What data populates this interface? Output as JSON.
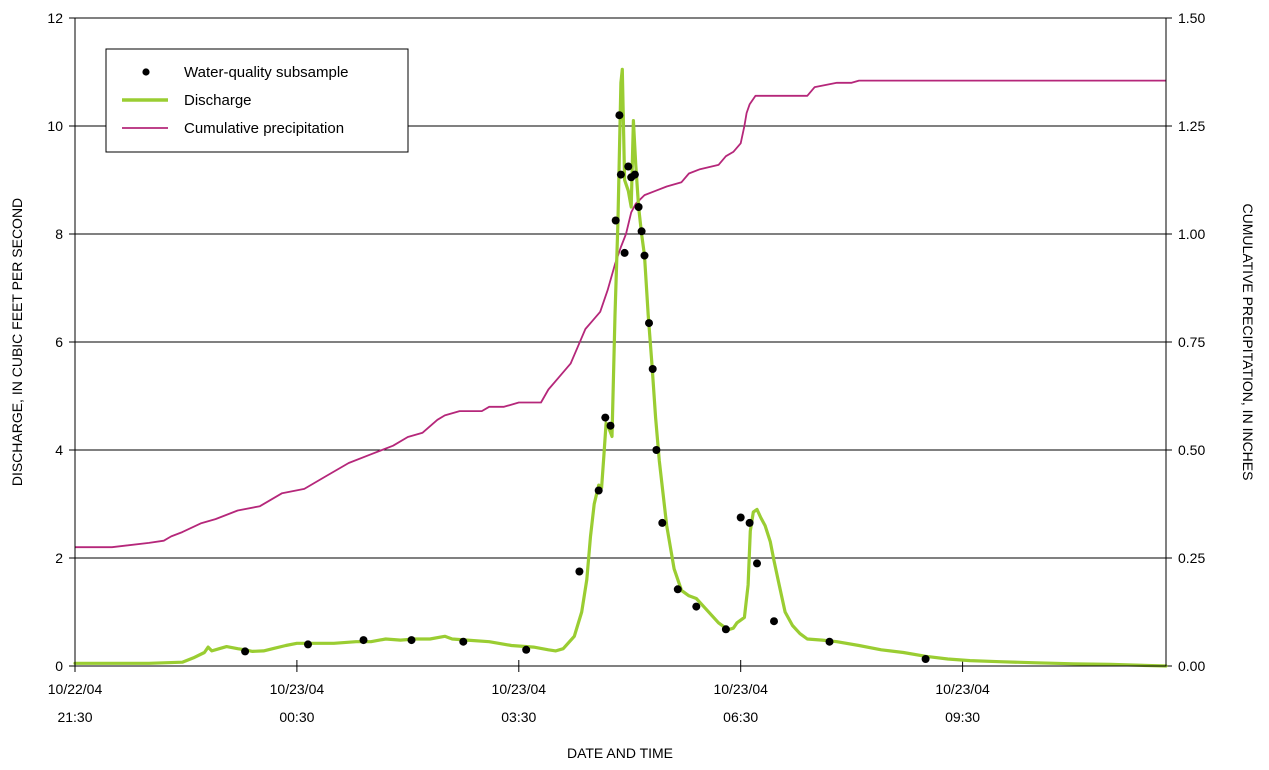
{
  "chart_data": {
    "type": "line",
    "xlabel": "DATE AND TIME",
    "ylabel_left": "DISCHARGE, IN CUBIC FEET PER SECOND",
    "ylabel_right": "CUMULATIVE PRECIPITATION, IN INCHES",
    "x_unit": "hours after 10/22/04 21:30",
    "xlim": [
      0,
      14.75
    ],
    "ylim_left": [
      0,
      12
    ],
    "ylim_right": [
      0,
      1.5
    ],
    "x_ticks": [
      {
        "x": 0,
        "date": "10/22/04",
        "time": "21:30"
      },
      {
        "x": 3,
        "date": "10/23/04",
        "time": "00:30"
      },
      {
        "x": 6,
        "date": "10/23/04",
        "time": "03:30"
      },
      {
        "x": 9,
        "date": "10/23/04",
        "time": "06:30"
      },
      {
        "x": 12,
        "date": "10/23/04",
        "time": "09:30"
      }
    ],
    "y_ticks_left": [
      "0",
      "2",
      "4",
      "6",
      "8",
      "10",
      "12"
    ],
    "y_ticks_right": [
      "0.00",
      "0.25",
      "0.50",
      "0.75",
      "1.00",
      "1.25",
      "1.50"
    ],
    "grid": "horizontal",
    "legend_position": "top-left",
    "series": [
      {
        "name": "Discharge",
        "axis": "left",
        "color": "#9acd32",
        "points": [
          [
            0,
            0.05
          ],
          [
            1,
            0.05
          ],
          [
            1.45,
            0.07
          ],
          [
            1.6,
            0.15
          ],
          [
            1.75,
            0.25
          ],
          [
            1.8,
            0.35
          ],
          [
            1.85,
            0.28
          ],
          [
            1.95,
            0.32
          ],
          [
            2.05,
            0.36
          ],
          [
            2.2,
            0.32
          ],
          [
            2.3,
            0.3
          ],
          [
            2.4,
            0.27
          ],
          [
            2.55,
            0.28
          ],
          [
            2.7,
            0.33
          ],
          [
            2.85,
            0.38
          ],
          [
            3.0,
            0.42
          ],
          [
            3.2,
            0.42
          ],
          [
            3.5,
            0.42
          ],
          [
            3.8,
            0.45
          ],
          [
            4.0,
            0.45
          ],
          [
            4.2,
            0.5
          ],
          [
            4.4,
            0.48
          ],
          [
            4.6,
            0.5
          ],
          [
            4.8,
            0.5
          ],
          [
            5.0,
            0.55
          ],
          [
            5.1,
            0.5
          ],
          [
            5.3,
            0.48
          ],
          [
            5.6,
            0.45
          ],
          [
            5.9,
            0.38
          ],
          [
            6.2,
            0.35
          ],
          [
            6.4,
            0.3
          ],
          [
            6.5,
            0.28
          ],
          [
            6.6,
            0.32
          ],
          [
            6.75,
            0.55
          ],
          [
            6.85,
            1.0
          ],
          [
            6.92,
            1.6
          ],
          [
            6.97,
            2.4
          ],
          [
            7.02,
            3.0
          ],
          [
            7.08,
            3.35
          ],
          [
            7.12,
            3.3
          ],
          [
            7.15,
            3.9
          ],
          [
            7.18,
            4.5
          ],
          [
            7.22,
            4.4
          ],
          [
            7.26,
            4.25
          ],
          [
            7.3,
            6.5
          ],
          [
            7.34,
            8.2
          ],
          [
            7.38,
            10.8
          ],
          [
            7.4,
            11.05
          ],
          [
            7.43,
            9.0
          ],
          [
            7.48,
            8.8
          ],
          [
            7.52,
            8.5
          ],
          [
            7.55,
            10.1
          ],
          [
            7.58,
            9.3
          ],
          [
            7.62,
            8.5
          ],
          [
            7.66,
            8.0
          ],
          [
            7.7,
            7.6
          ],
          [
            7.75,
            6.5
          ],
          [
            7.8,
            5.6
          ],
          [
            7.85,
            4.6
          ],
          [
            7.9,
            3.8
          ],
          [
            8.0,
            2.6
          ],
          [
            8.1,
            1.8
          ],
          [
            8.2,
            1.4
          ],
          [
            8.3,
            1.3
          ],
          [
            8.4,
            1.25
          ],
          [
            8.5,
            1.1
          ],
          [
            8.6,
            0.95
          ],
          [
            8.7,
            0.8
          ],
          [
            8.8,
            0.7
          ],
          [
            8.85,
            0.68
          ],
          [
            8.9,
            0.7
          ],
          [
            8.95,
            0.8
          ],
          [
            9.05,
            0.9
          ],
          [
            9.1,
            1.5
          ],
          [
            9.13,
            2.5
          ],
          [
            9.17,
            2.85
          ],
          [
            9.22,
            2.9
          ],
          [
            9.27,
            2.75
          ],
          [
            9.33,
            2.6
          ],
          [
            9.4,
            2.3
          ],
          [
            9.45,
            1.95
          ],
          [
            9.52,
            1.5
          ],
          [
            9.6,
            1.0
          ],
          [
            9.7,
            0.75
          ],
          [
            9.8,
            0.6
          ],
          [
            9.9,
            0.5
          ],
          [
            10.1,
            0.48
          ],
          [
            10.3,
            0.45
          ],
          [
            10.6,
            0.38
          ],
          [
            10.9,
            0.3
          ],
          [
            11.2,
            0.25
          ],
          [
            11.5,
            0.18
          ],
          [
            11.8,
            0.13
          ],
          [
            12.1,
            0.1
          ],
          [
            12.5,
            0.08
          ],
          [
            13.0,
            0.06
          ],
          [
            13.5,
            0.04
          ],
          [
            14.0,
            0.03
          ],
          [
            14.75,
            0.0
          ]
        ]
      },
      {
        "name": "Cumulative precipitation",
        "axis": "right",
        "color": "#b5277a",
        "points": [
          [
            0,
            0.275
          ],
          [
            0.5,
            0.275
          ],
          [
            1.0,
            0.285
          ],
          [
            1.2,
            0.29
          ],
          [
            1.3,
            0.3
          ],
          [
            1.45,
            0.31
          ],
          [
            1.7,
            0.33
          ],
          [
            1.9,
            0.34
          ],
          [
            2.2,
            0.36
          ],
          [
            2.5,
            0.37
          ],
          [
            2.8,
            0.4
          ],
          [
            3.1,
            0.41
          ],
          [
            3.4,
            0.44
          ],
          [
            3.7,
            0.47
          ],
          [
            4.0,
            0.49
          ],
          [
            4.3,
            0.51
          ],
          [
            4.5,
            0.53
          ],
          [
            4.7,
            0.54
          ],
          [
            4.9,
            0.57
          ],
          [
            5.0,
            0.58
          ],
          [
            5.2,
            0.59
          ],
          [
            5.5,
            0.59
          ],
          [
            5.6,
            0.6
          ],
          [
            5.8,
            0.6
          ],
          [
            6.0,
            0.61
          ],
          [
            6.3,
            0.61
          ],
          [
            6.4,
            0.64
          ],
          [
            6.55,
            0.67
          ],
          [
            6.7,
            0.7
          ],
          [
            6.8,
            0.74
          ],
          [
            6.9,
            0.78
          ],
          [
            7.0,
            0.8
          ],
          [
            7.1,
            0.82
          ],
          [
            7.2,
            0.87
          ],
          [
            7.3,
            0.93
          ],
          [
            7.38,
            0.97
          ],
          [
            7.45,
            1.0
          ],
          [
            7.52,
            1.05
          ],
          [
            7.58,
            1.07
          ],
          [
            7.7,
            1.09
          ],
          [
            7.85,
            1.1
          ],
          [
            8.0,
            1.11
          ],
          [
            8.2,
            1.12
          ],
          [
            8.3,
            1.14
          ],
          [
            8.45,
            1.15
          ],
          [
            8.7,
            1.16
          ],
          [
            8.8,
            1.18
          ],
          [
            8.9,
            1.19
          ],
          [
            9.0,
            1.21
          ],
          [
            9.05,
            1.25
          ],
          [
            9.08,
            1.28
          ],
          [
            9.12,
            1.3
          ],
          [
            9.2,
            1.32
          ],
          [
            9.5,
            1.32
          ],
          [
            9.9,
            1.32
          ],
          [
            10.0,
            1.34
          ],
          [
            10.3,
            1.35
          ],
          [
            10.5,
            1.35
          ],
          [
            10.6,
            1.355
          ],
          [
            14.75,
            1.355
          ]
        ]
      },
      {
        "name": "Water-quality subsample",
        "axis": "left",
        "type": "scatter",
        "color": "#000000",
        "points": [
          [
            2.3,
            0.27
          ],
          [
            3.15,
            0.4
          ],
          [
            3.9,
            0.48
          ],
          [
            4.55,
            0.48
          ],
          [
            5.25,
            0.45
          ],
          [
            6.1,
            0.3
          ],
          [
            6.82,
            1.75
          ],
          [
            7.08,
            3.25
          ],
          [
            7.17,
            4.6
          ],
          [
            7.24,
            4.45
          ],
          [
            7.31,
            8.25
          ],
          [
            7.36,
            10.2
          ],
          [
            7.38,
            9.1
          ],
          [
            7.43,
            7.65
          ],
          [
            7.48,
            9.25
          ],
          [
            7.52,
            9.05
          ],
          [
            7.57,
            9.1
          ],
          [
            7.62,
            8.5
          ],
          [
            7.66,
            8.05
          ],
          [
            7.7,
            7.6
          ],
          [
            7.76,
            6.35
          ],
          [
            7.81,
            5.5
          ],
          [
            7.86,
            4.0
          ],
          [
            7.94,
            2.65
          ],
          [
            8.15,
            1.42
          ],
          [
            8.4,
            1.1
          ],
          [
            8.8,
            0.68
          ],
          [
            9.0,
            2.75
          ],
          [
            9.12,
            2.65
          ],
          [
            9.22,
            1.9
          ],
          [
            9.45,
            0.83
          ],
          [
            10.2,
            0.45
          ],
          [
            11.5,
            0.13
          ]
        ]
      }
    ]
  },
  "legend": {
    "items": [
      {
        "label": "Water-quality subsample",
        "kind": "marker",
        "color": "#000000"
      },
      {
        "label": "Discharge",
        "kind": "line",
        "color": "#9acd32"
      },
      {
        "label": "Cumulative precipitation",
        "kind": "line",
        "color": "#b5277a"
      }
    ]
  }
}
